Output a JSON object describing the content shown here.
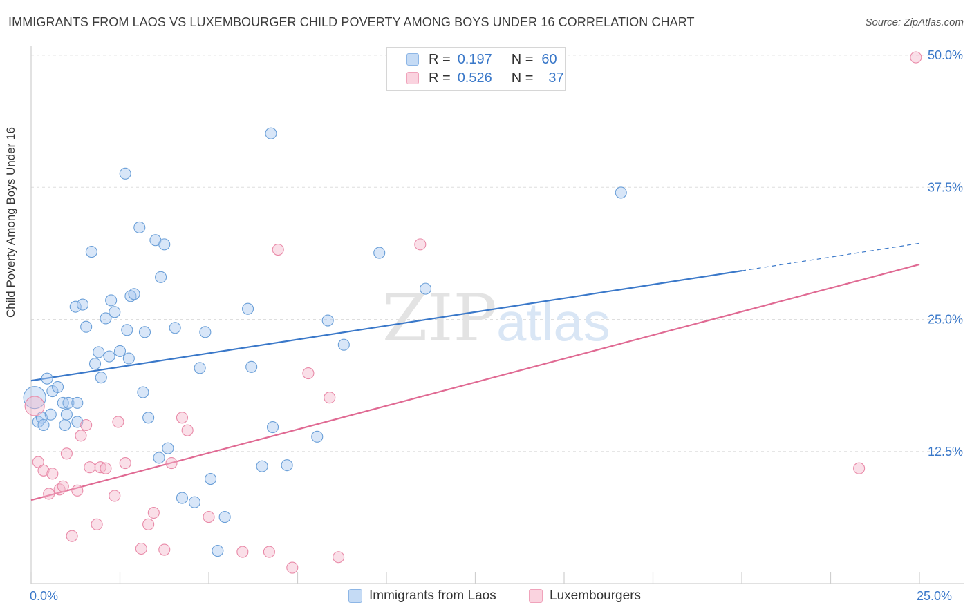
{
  "header": {
    "title": "IMMIGRANTS FROM LAOS VS LUXEMBOURGER CHILD POVERTY AMONG BOYS UNDER 16 CORRELATION CHART",
    "source": "Source: ZipAtlas.com"
  },
  "watermark": {
    "zip": "ZIP",
    "atlas": "atlas"
  },
  "legend": {
    "rows": [
      {
        "r_label": "R =",
        "r_value": "0.197",
        "n_label": "N =",
        "n_value": "60",
        "color": "#a9c8ef"
      },
      {
        "r_label": "R =",
        "r_value": "0.526",
        "n_label": "N =",
        "n_value": "37",
        "color": "#f5b8cb"
      }
    ]
  },
  "bottom_legend": [
    {
      "label": "Immigrants from Laos",
      "color": "#a9c8ef"
    },
    {
      "label": "Luxembourgers",
      "color": "#f5b8cb"
    }
  ],
  "axes": {
    "x_min_label": "0.0%",
    "x_max_label": "25.0%",
    "y_ticks": [
      "12.5%",
      "25.0%",
      "37.5%",
      "50.0%"
    ]
  },
  "chart_data": {
    "type": "scatter",
    "title": "IMMIGRANTS FROM LAOS VS LUXEMBOURGER CHILD POVERTY AMONG BOYS UNDER 16 CORRELATION CHART",
    "xlabel": "",
    "ylabel": "Child Poverty Among Boys Under 16",
    "xlim": [
      0,
      25
    ],
    "ylim": [
      0,
      50
    ],
    "y_ticks": [
      12.5,
      25.0,
      37.5,
      50.0
    ],
    "grid": true,
    "legend_position": "top-center",
    "series": [
      {
        "name": "Immigrants from Laos",
        "color": "#a9c8ef",
        "stroke": "#6a9fd8",
        "trend": {
          "x": [
            0,
            20
          ],
          "y": [
            19.2,
            29.6
          ],
          "dashed_to": [
            25,
            32.2
          ],
          "color": "#3a78c9"
        },
        "points": [
          [
            0.1,
            17.6
          ],
          [
            0.2,
            15.3
          ],
          [
            0.3,
            15.7
          ],
          [
            0.35,
            15.0
          ],
          [
            0.45,
            19.4
          ],
          [
            0.55,
            16.0
          ],
          [
            0.6,
            18.2
          ],
          [
            0.75,
            18.6
          ],
          [
            0.9,
            17.1
          ],
          [
            0.95,
            15.0
          ],
          [
            1.0,
            16.0
          ],
          [
            1.05,
            17.1
          ],
          [
            1.3,
            17.1
          ],
          [
            1.3,
            15.3
          ],
          [
            1.25,
            26.2
          ],
          [
            1.45,
            26.4
          ],
          [
            1.55,
            24.3
          ],
          [
            1.7,
            31.4
          ],
          [
            1.8,
            20.8
          ],
          [
            1.9,
            21.9
          ],
          [
            1.97,
            19.5
          ],
          [
            2.1,
            25.1
          ],
          [
            2.2,
            21.5
          ],
          [
            2.25,
            26.8
          ],
          [
            2.35,
            25.7
          ],
          [
            2.5,
            22.0
          ],
          [
            2.65,
            38.8
          ],
          [
            2.7,
            24.0
          ],
          [
            2.75,
            21.3
          ],
          [
            2.8,
            27.2
          ],
          [
            2.9,
            27.4
          ],
          [
            3.05,
            33.7
          ],
          [
            3.15,
            18.1
          ],
          [
            3.2,
            23.8
          ],
          [
            3.3,
            15.7
          ],
          [
            3.5,
            32.5
          ],
          [
            3.6,
            11.9
          ],
          [
            3.65,
            29.0
          ],
          [
            3.75,
            32.1
          ],
          [
            3.85,
            12.8
          ],
          [
            4.05,
            24.2
          ],
          [
            4.25,
            8.1
          ],
          [
            4.6,
            7.7
          ],
          [
            4.75,
            20.4
          ],
          [
            4.9,
            23.8
          ],
          [
            5.05,
            9.9
          ],
          [
            5.25,
            3.1
          ],
          [
            5.45,
            6.3
          ],
          [
            6.1,
            26.0
          ],
          [
            6.2,
            20.5
          ],
          [
            6.5,
            11.1
          ],
          [
            6.75,
            42.6
          ],
          [
            6.8,
            14.8
          ],
          [
            7.2,
            11.2
          ],
          [
            8.05,
            13.9
          ],
          [
            8.35,
            24.9
          ],
          [
            8.8,
            22.6
          ],
          [
            9.8,
            31.3
          ],
          [
            11.1,
            27.9
          ],
          [
            16.6,
            37.0
          ]
        ]
      },
      {
        "name": "Luxembourgers",
        "color": "#f5b8cb",
        "stroke": "#e98aa8",
        "trend": {
          "x": [
            0,
            25
          ],
          "y": [
            7.9,
            30.2
          ],
          "color": "#e06a93"
        },
        "points": [
          [
            0.1,
            16.8
          ],
          [
            0.2,
            11.5
          ],
          [
            0.35,
            10.7
          ],
          [
            0.5,
            8.5
          ],
          [
            0.6,
            10.4
          ],
          [
            0.8,
            8.9
          ],
          [
            0.9,
            9.2
          ],
          [
            1.0,
            12.3
          ],
          [
            1.15,
            4.5
          ],
          [
            1.3,
            8.8
          ],
          [
            1.4,
            14.0
          ],
          [
            1.55,
            15.0
          ],
          [
            1.65,
            11.0
          ],
          [
            1.85,
            5.6
          ],
          [
            1.95,
            11.0
          ],
          [
            2.1,
            10.9
          ],
          [
            2.35,
            8.3
          ],
          [
            2.45,
            15.3
          ],
          [
            2.65,
            11.4
          ],
          [
            3.1,
            3.3
          ],
          [
            3.3,
            5.6
          ],
          [
            3.45,
            6.7
          ],
          [
            3.75,
            3.2
          ],
          [
            3.95,
            11.4
          ],
          [
            4.25,
            15.7
          ],
          [
            4.4,
            14.5
          ],
          [
            5.0,
            6.3
          ],
          [
            5.95,
            3.0
          ],
          [
            6.7,
            3.0
          ],
          [
            6.95,
            31.6
          ],
          [
            7.35,
            1.5
          ],
          [
            7.8,
            19.9
          ],
          [
            8.4,
            17.6
          ],
          [
            8.65,
            2.5
          ],
          [
            10.95,
            32.1
          ],
          [
            23.3,
            10.9
          ],
          [
            24.9,
            49.8
          ]
        ]
      }
    ]
  }
}
